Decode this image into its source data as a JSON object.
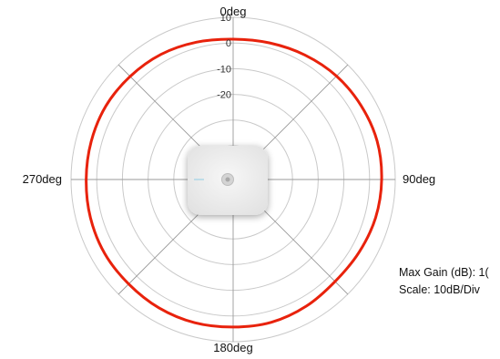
{
  "chart_data": {
    "type": "polar",
    "angle_labels": [
      {
        "angle": 0,
        "text": "0deg"
      },
      {
        "angle": 90,
        "text": "90deg"
      },
      {
        "angle": 180,
        "text": "180deg"
      },
      {
        "angle": 270,
        "text": "270deg"
      }
    ],
    "radial_range": [
      -40,
      10
    ],
    "radial_ticks": [
      {
        "value": 10,
        "text": "10"
      },
      {
        "value": 0,
        "text": "0"
      },
      {
        "value": -10,
        "text": "-10"
      },
      {
        "value": -20,
        "text": "-20"
      }
    ],
    "series": [
      {
        "color": "#e8220c",
        "points": [
          {
            "angle": 0,
            "gain": 1.5
          },
          {
            "angle": 15,
            "gain": 1.9
          },
          {
            "angle": 30,
            "gain": 2.8
          },
          {
            "angle": 45,
            "gain": 3.8
          },
          {
            "angle": 60,
            "gain": 4.4
          },
          {
            "angle": 75,
            "gain": 4.9
          },
          {
            "angle": 90,
            "gain": 4.7
          },
          {
            "angle": 105,
            "gain": 4.3
          },
          {
            "angle": 120,
            "gain": 3.5
          },
          {
            "angle": 135,
            "gain": 3.0
          },
          {
            "angle": 150,
            "gain": 3.8
          },
          {
            "angle": 165,
            "gain": 4.4
          },
          {
            "angle": 180,
            "gain": 4.3
          },
          {
            "angle": 195,
            "gain": 4.6
          },
          {
            "angle": 210,
            "gain": 4.6
          },
          {
            "angle": 225,
            "gain": 4.4
          },
          {
            "angle": 240,
            "gain": 4.6
          },
          {
            "angle": 255,
            "gain": 4.4
          },
          {
            "angle": 270,
            "gain": 4.1
          },
          {
            "angle": 285,
            "gain": 4.1
          },
          {
            "angle": 300,
            "gain": 4.1
          },
          {
            "angle": 315,
            "gain": 3.6
          },
          {
            "angle": 330,
            "gain": 3.1
          },
          {
            "angle": 345,
            "gain": 2.2
          }
        ]
      }
    ],
    "grid": true
  },
  "info": {
    "max_gain": "Max Gain (dB): 1(",
    "scale": "Scale: 10dB/Div"
  },
  "colors": {
    "grid": "#c9c9c9",
    "spoke": "#9a9a9a",
    "trace": "#e8220c",
    "device": "#ececec"
  },
  "icons": {
    "center": "access-point-device-icon"
  }
}
